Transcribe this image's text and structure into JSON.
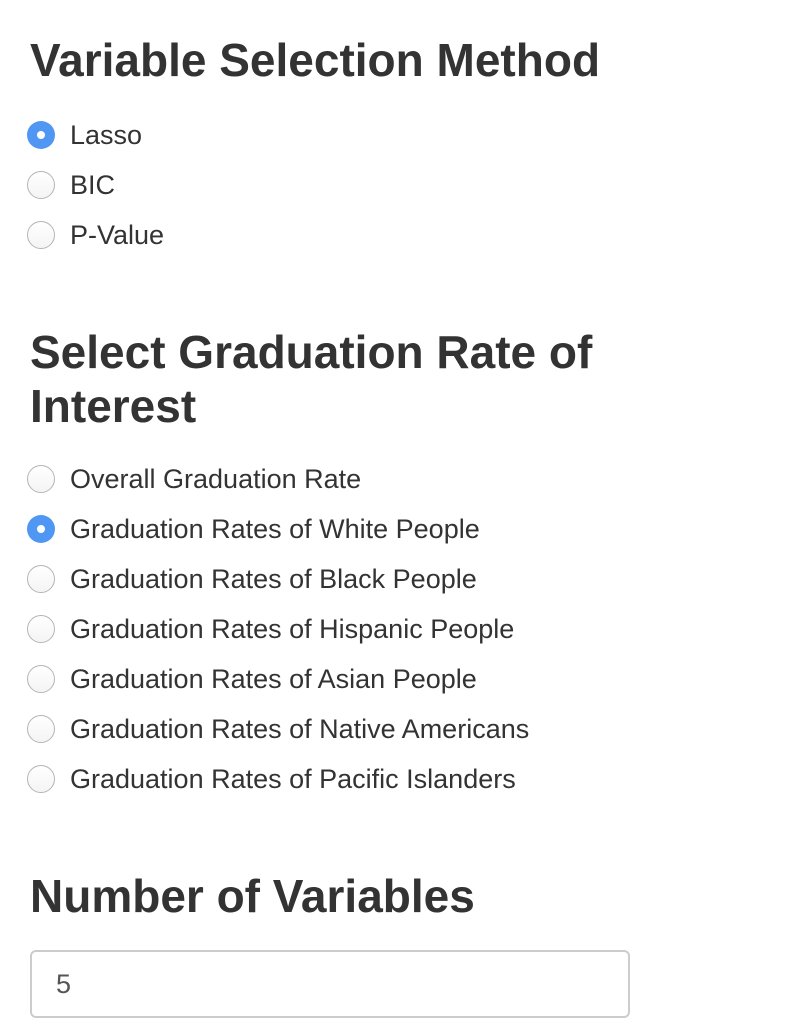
{
  "variable_selection": {
    "heading": "Variable Selection Method",
    "options": [
      {
        "label": "Lasso",
        "checked": true
      },
      {
        "label": "BIC",
        "checked": false
      },
      {
        "label": "P-Value",
        "checked": false
      }
    ]
  },
  "graduation_rate": {
    "heading": "Select Graduation Rate of Interest",
    "options": [
      {
        "label": "Overall Graduation Rate",
        "checked": false
      },
      {
        "label": "Graduation Rates of White People",
        "checked": true
      },
      {
        "label": "Graduation Rates of Black People",
        "checked": false
      },
      {
        "label": "Graduation Rates of Hispanic People",
        "checked": false
      },
      {
        "label": "Graduation Rates of Asian People",
        "checked": false
      },
      {
        "label": "Graduation Rates of Native Americans",
        "checked": false
      },
      {
        "label": "Graduation Rates of Pacific Islanders",
        "checked": false
      }
    ]
  },
  "number_of_variables": {
    "heading": "Number of Variables",
    "value": "5"
  },
  "colors": {
    "accent": "#4f97f2",
    "text": "#333333",
    "input_border": "#cccccc"
  }
}
